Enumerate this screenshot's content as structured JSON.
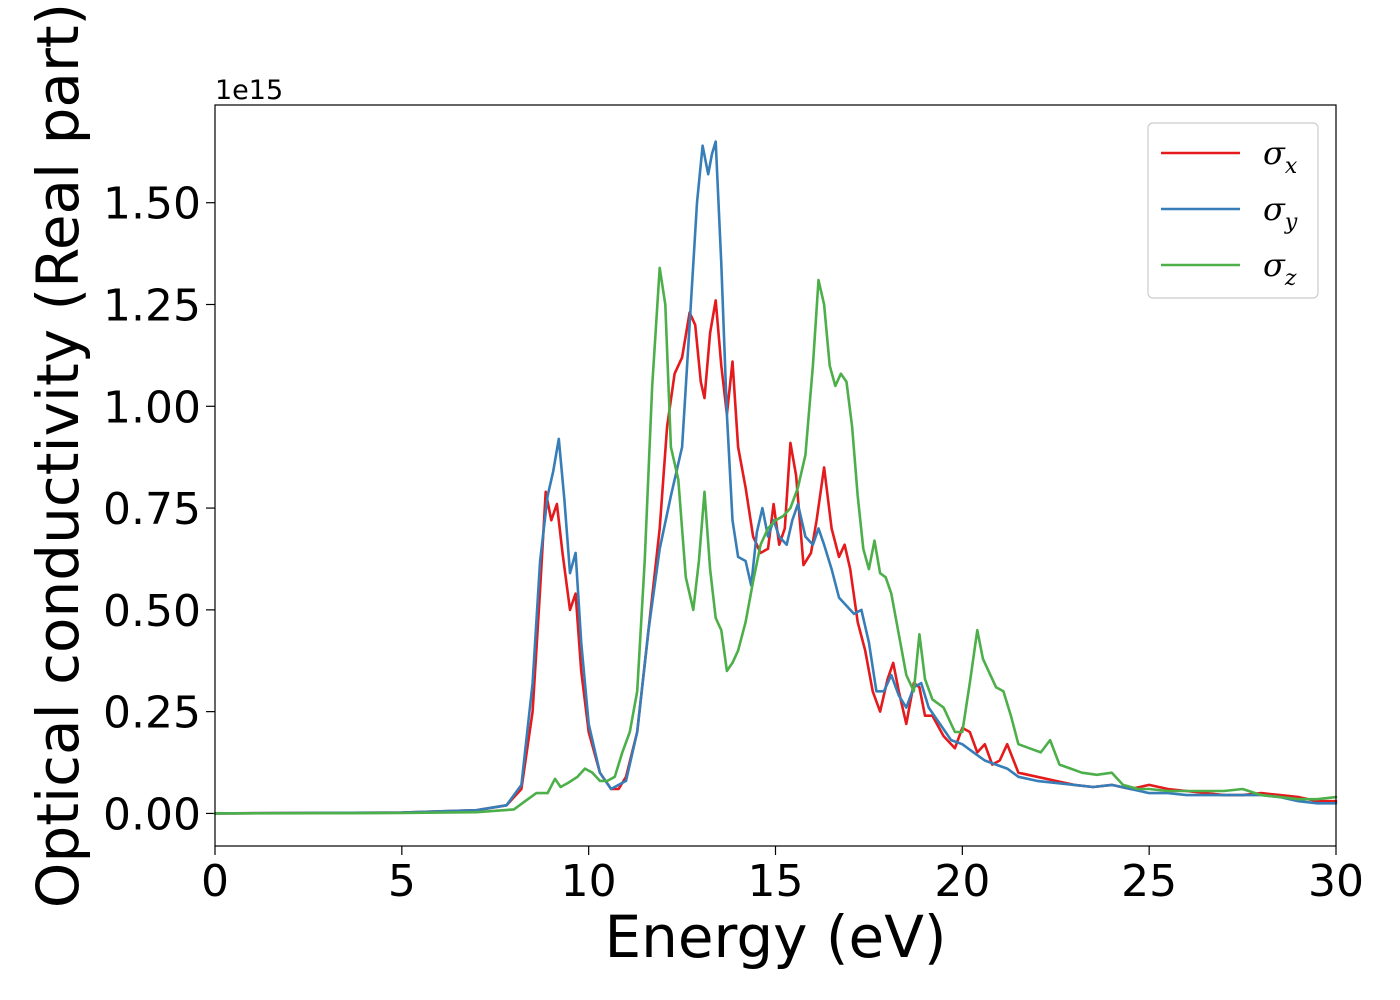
{
  "chart_data": {
    "type": "line",
    "xlabel": "Energy (eV)",
    "ylabel": "Optical conductivity (Real part)",
    "y_offset_text": "1e15",
    "xlim": [
      0,
      30
    ],
    "ylim": [
      -0.08,
      1.74
    ],
    "x_ticks": [
      0,
      5,
      10,
      15,
      20,
      25,
      30
    ],
    "x_tick_labels": [
      "0",
      "5",
      "10",
      "15",
      "20",
      "25",
      "30"
    ],
    "y_ticks": [
      0.0,
      0.25,
      0.5,
      0.75,
      1.0,
      1.25,
      1.5
    ],
    "y_tick_labels": [
      "0.00",
      "0.25",
      "0.50",
      "0.75",
      "1.00",
      "1.25",
      "1.50"
    ],
    "grid": false,
    "legend_position": "top-right",
    "series": [
      {
        "name": "σx",
        "symbol": "σ",
        "subscript": "x",
        "color": "#e41a1c",
        "x": [
          0,
          5,
          7,
          7.8,
          8.2,
          8.5,
          8.7,
          8.85,
          9.0,
          9.15,
          9.3,
          9.5,
          9.65,
          9.8,
          10.0,
          10.3,
          10.6,
          10.8,
          11.0,
          11.3,
          11.6,
          11.9,
          12.1,
          12.3,
          12.5,
          12.7,
          12.85,
          13.0,
          13.1,
          13.25,
          13.4,
          13.55,
          13.7,
          13.85,
          14.0,
          14.2,
          14.4,
          14.6,
          14.8,
          14.95,
          15.1,
          15.25,
          15.4,
          15.55,
          15.75,
          15.95,
          16.1,
          16.3,
          16.5,
          16.7,
          16.85,
          17.0,
          17.2,
          17.4,
          17.6,
          17.8,
          18.0,
          18.15,
          18.3,
          18.5,
          18.7,
          18.85,
          19.0,
          19.2,
          19.5,
          19.8,
          20.0,
          20.2,
          20.4,
          20.6,
          20.8,
          21.0,
          21.2,
          21.5,
          22.0,
          22.5,
          23.0,
          23.5,
          24.0,
          24.5,
          25.0,
          25.5,
          26.0,
          26.5,
          27.0,
          27.5,
          28.0,
          28.5,
          29.0,
          29.5,
          30.0
        ],
        "y": [
          0.0,
          0.002,
          0.008,
          0.02,
          0.06,
          0.25,
          0.55,
          0.79,
          0.72,
          0.76,
          0.64,
          0.5,
          0.54,
          0.35,
          0.2,
          0.1,
          0.06,
          0.06,
          0.09,
          0.2,
          0.45,
          0.7,
          0.95,
          1.08,
          1.12,
          1.23,
          1.2,
          1.06,
          1.02,
          1.18,
          1.26,
          1.1,
          0.98,
          1.11,
          0.9,
          0.8,
          0.68,
          0.64,
          0.65,
          0.76,
          0.66,
          0.7,
          0.91,
          0.83,
          0.61,
          0.64,
          0.72,
          0.85,
          0.7,
          0.63,
          0.66,
          0.6,
          0.47,
          0.4,
          0.3,
          0.25,
          0.33,
          0.37,
          0.3,
          0.22,
          0.32,
          0.31,
          0.24,
          0.24,
          0.19,
          0.16,
          0.21,
          0.2,
          0.15,
          0.17,
          0.12,
          0.13,
          0.17,
          0.1,
          0.09,
          0.08,
          0.07,
          0.065,
          0.07,
          0.06,
          0.07,
          0.06,
          0.055,
          0.05,
          0.045,
          0.045,
          0.05,
          0.045,
          0.04,
          0.03,
          0.03
        ]
      },
      {
        "name": "σy",
        "symbol": "σ",
        "subscript": "y",
        "color": "#377eb8",
        "x": [
          0,
          5,
          7,
          7.8,
          8.2,
          8.5,
          8.7,
          8.9,
          9.05,
          9.2,
          9.35,
          9.5,
          9.65,
          9.8,
          10.0,
          10.3,
          10.6,
          10.8,
          11.0,
          11.3,
          11.6,
          11.9,
          12.2,
          12.5,
          12.7,
          12.9,
          13.05,
          13.2,
          13.3,
          13.4,
          13.55,
          13.7,
          13.85,
          14.0,
          14.2,
          14.35,
          14.5,
          14.65,
          14.8,
          14.95,
          15.1,
          15.3,
          15.45,
          15.6,
          15.8,
          16.0,
          16.15,
          16.3,
          16.5,
          16.7,
          16.9,
          17.1,
          17.3,
          17.5,
          17.7,
          17.9,
          18.1,
          18.3,
          18.5,
          18.7,
          18.9,
          19.1,
          19.4,
          19.7,
          20.0,
          20.3,
          20.6,
          20.9,
          21.2,
          21.5,
          22.0,
          22.5,
          23.0,
          23.5,
          24.0,
          24.5,
          25.0,
          25.5,
          26.0,
          26.5,
          27.0,
          27.5,
          28.0,
          28.5,
          29.0,
          29.5,
          30.0
        ],
        "y": [
          0.0,
          0.002,
          0.008,
          0.02,
          0.07,
          0.32,
          0.62,
          0.78,
          0.84,
          0.92,
          0.77,
          0.59,
          0.64,
          0.42,
          0.22,
          0.1,
          0.06,
          0.07,
          0.08,
          0.2,
          0.45,
          0.65,
          0.78,
          0.9,
          1.2,
          1.5,
          1.64,
          1.57,
          1.62,
          1.65,
          1.35,
          0.98,
          0.72,
          0.63,
          0.62,
          0.56,
          0.69,
          0.75,
          0.68,
          0.72,
          0.68,
          0.66,
          0.72,
          0.76,
          0.68,
          0.66,
          0.7,
          0.66,
          0.6,
          0.53,
          0.51,
          0.49,
          0.5,
          0.42,
          0.3,
          0.3,
          0.34,
          0.29,
          0.26,
          0.31,
          0.32,
          0.26,
          0.22,
          0.18,
          0.17,
          0.15,
          0.13,
          0.12,
          0.11,
          0.09,
          0.08,
          0.075,
          0.07,
          0.065,
          0.07,
          0.06,
          0.05,
          0.05,
          0.045,
          0.045,
          0.045,
          0.045,
          0.045,
          0.04,
          0.03,
          0.025,
          0.025
        ]
      },
      {
        "name": "σz",
        "symbol": "σ",
        "subscript": "z",
        "color": "#4daf4a",
        "x": [
          0,
          5,
          7,
          8.0,
          8.3,
          8.6,
          8.9,
          9.1,
          9.25,
          9.45,
          9.7,
          9.9,
          10.1,
          10.3,
          10.5,
          10.7,
          10.9,
          11.1,
          11.3,
          11.5,
          11.7,
          11.9,
          12.05,
          12.2,
          12.4,
          12.6,
          12.8,
          12.95,
          13.1,
          13.25,
          13.4,
          13.55,
          13.7,
          13.85,
          14.0,
          14.2,
          14.4,
          14.6,
          14.8,
          15.0,
          15.2,
          15.4,
          15.6,
          15.8,
          16.0,
          16.15,
          16.3,
          16.45,
          16.6,
          16.75,
          16.9,
          17.05,
          17.2,
          17.35,
          17.5,
          17.65,
          17.8,
          17.95,
          18.1,
          18.3,
          18.5,
          18.7,
          18.85,
          19.0,
          19.2,
          19.5,
          19.8,
          20.0,
          20.2,
          20.4,
          20.55,
          20.7,
          20.9,
          21.1,
          21.3,
          21.5,
          21.8,
          22.1,
          22.35,
          22.6,
          22.9,
          23.2,
          23.6,
          24.0,
          24.3,
          24.7,
          25.0,
          25.5,
          26.0,
          26.5,
          27.0,
          27.5,
          28.0,
          28.5,
          29.0,
          29.5,
          30.0
        ],
        "y": [
          0.0,
          0.001,
          0.003,
          0.01,
          0.03,
          0.05,
          0.05,
          0.085,
          0.065,
          0.075,
          0.09,
          0.11,
          0.1,
          0.08,
          0.08,
          0.09,
          0.15,
          0.2,
          0.3,
          0.62,
          1.05,
          1.34,
          1.25,
          0.9,
          0.82,
          0.58,
          0.5,
          0.62,
          0.79,
          0.6,
          0.48,
          0.45,
          0.35,
          0.37,
          0.4,
          0.47,
          0.57,
          0.66,
          0.7,
          0.72,
          0.73,
          0.75,
          0.8,
          0.88,
          1.1,
          1.31,
          1.25,
          1.1,
          1.05,
          1.08,
          1.06,
          0.95,
          0.78,
          0.65,
          0.6,
          0.67,
          0.59,
          0.58,
          0.54,
          0.44,
          0.34,
          0.3,
          0.44,
          0.33,
          0.28,
          0.26,
          0.2,
          0.2,
          0.32,
          0.45,
          0.38,
          0.35,
          0.31,
          0.3,
          0.24,
          0.17,
          0.16,
          0.15,
          0.18,
          0.12,
          0.11,
          0.1,
          0.095,
          0.1,
          0.07,
          0.06,
          0.06,
          0.055,
          0.055,
          0.055,
          0.055,
          0.06,
          0.045,
          0.04,
          0.035,
          0.035,
          0.04
        ]
      }
    ]
  }
}
